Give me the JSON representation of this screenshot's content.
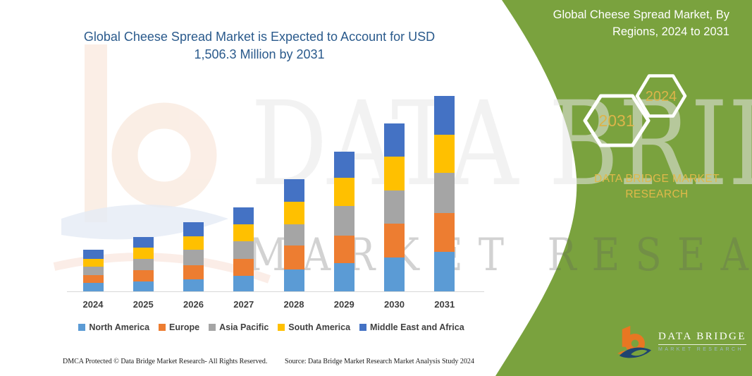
{
  "title": {
    "line1": "Global Cheese Spread Market is Expected to Account for USD",
    "line2": "1,506.3 Million by 2031"
  },
  "chart_data": {
    "type": "bar",
    "stacked": true,
    "title": "Global Cheese Spread Market is Expected to Account for USD 1,506.3 Million by 2031",
    "unit": "USD Million",
    "categories": [
      "2024",
      "2025",
      "2026",
      "2027",
      "2028",
      "2029",
      "2030",
      "2031"
    ],
    "series": [
      {
        "name": "North America",
        "color": "#5B9BD5",
        "values": [
          65,
          76,
          92,
          120,
          169,
          218,
          261,
          305
        ]
      },
      {
        "name": "Europe",
        "color": "#ED7D31",
        "values": [
          60,
          87,
          109,
          131,
          185,
          212,
          261,
          299
        ]
      },
      {
        "name": "Asia Pacific",
        "color": "#A5A5A5",
        "values": [
          65,
          87,
          120,
          136,
          163,
          228,
          256,
          310
        ]
      },
      {
        "name": "South America",
        "color": "#FFC000",
        "values": [
          60,
          87,
          103,
          131,
          174,
          218,
          261,
          294
        ]
      },
      {
        "name": "Middle East and Africa",
        "color": "#4472C4",
        "values": [
          71,
          82,
          109,
          131,
          174,
          201,
          256,
          298.3
        ]
      }
    ],
    "totals": [
      321,
      419,
      533,
      649,
      865,
      1077,
      1295,
      1506.3
    ],
    "ylim": [
      0,
      1550
    ],
    "xlabel": "",
    "ylabel": "",
    "gridlines": false,
    "legend_position": "bottom"
  },
  "side_panel": {
    "heading_line1": "Global Cheese Spread Market, By",
    "heading_line2": "Regions, 2024 to 2031",
    "hexagons": [
      {
        "label": "2031"
      },
      {
        "label": "2024"
      }
    ],
    "brand_line1": "DATA BRIDGE MARKET",
    "brand_line2": "RESEARCH",
    "background_color": "#7AA23E",
    "gold_color": "#DCB44A"
  },
  "logo": {
    "name": "DATA BRIDGE",
    "subtitle": "MARKET RESEARCH"
  },
  "watermark": {
    "line1": "DATA BRIDGE",
    "line2": "MARKET RESEARCH"
  },
  "footer": {
    "left": "DMCA Protected © Data Bridge Market Research-  All Rights Reserved.",
    "right": "Source: Data Bridge Market Research  Market Analysis Study 2024"
  }
}
